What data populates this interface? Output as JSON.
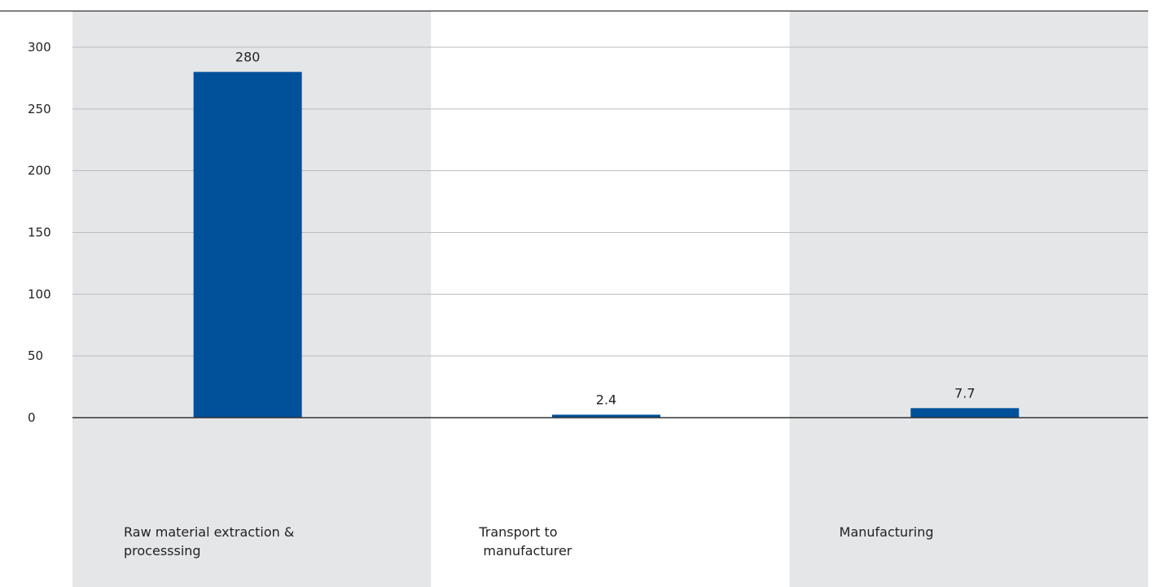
{
  "chart_data": {
    "type": "bar",
    "categories": [
      [
        "Raw material extraction &",
        "processsing"
      ],
      [
        "Transport to",
        " manufacturer"
      ],
      [
        "Manufacturing"
      ]
    ],
    "values": [
      280,
      2.4,
      7.7
    ],
    "data_labels": [
      "280",
      "2.4",
      "7.7"
    ],
    "ylim": [
      0,
      300
    ],
    "yticks": [
      0,
      50,
      100,
      150,
      200,
      250,
      300
    ],
    "grid": true,
    "colors": {
      "bar": "#00509A",
      "band_shaded": "#E5E6E8",
      "band_plain": "#FFFFFF",
      "grid": "#B9BCC0",
      "axis": "#333333"
    }
  }
}
